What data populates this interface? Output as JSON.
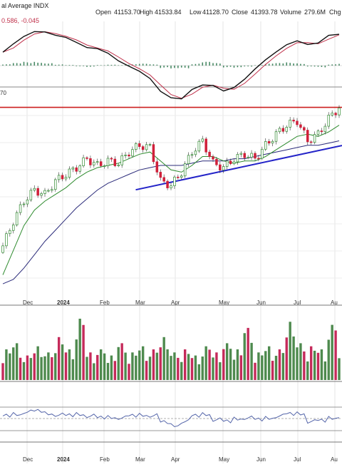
{
  "header": {
    "title": "al Average INDX",
    "open_label": "Open",
    "open": "41153.70",
    "high_label": "High",
    "high": "41533.84",
    "low_label": "Low",
    "low": "41128.70",
    "close_label": "Close",
    "close": "41393.78",
    "volume_label": "Volume",
    "volume": "279.6M",
    "chg_label": "Chg"
  },
  "macd_readout": "0.586, -0.045",
  "resistance_label": "70",
  "colors": {
    "up_candle": "#2f8a2f",
    "down_candle": "#d0203a",
    "sma_fast": "#2e8b2e",
    "sma_slow": "#2b2b7a",
    "resistance": "#cc1f1f",
    "trendline": "#2424c8",
    "macd": "#111111",
    "macd_signal": "#c0304a",
    "macd_hist": "#4a8a66",
    "rsi": "#5566aa",
    "rsi_fill": "#6aa38a",
    "volume_up": "#4e8a4e",
    "volume_down": "#c52a5a"
  },
  "chart_data": {
    "type": "candlestick",
    "x_tick_labels": [
      "Dec",
      "2024",
      "Feb",
      "Mar",
      "Apr",
      "May",
      "Jun",
      "Jul",
      "Au"
    ],
    "series": [
      {
        "name": "Price (weekly close, approx.)",
        "type": "line",
        "values": [
          35200,
          36300,
          37200,
          37700,
          37500,
          38100,
          38400,
          38700,
          39100,
          38800,
          39000,
          38900,
          39400,
          39700,
          39600,
          38100,
          37900,
          38500,
          39400,
          39900,
          38900,
          38700,
          39100,
          39300,
          39100,
          39700,
          40200,
          40600,
          40800,
          39900,
          40200,
          40900,
          41400
        ]
      },
      {
        "name": "Moving average (fast)",
        "type": "line",
        "values": [
          33900,
          35000,
          36100,
          36800,
          37200,
          37500,
          37800,
          38200,
          38500,
          38700,
          38800,
          38900,
          39100,
          39300,
          39400,
          39000,
          38600,
          38500,
          38800,
          39200,
          39200,
          39000,
          38900,
          39000,
          39000,
          39200,
          39500,
          39800,
          40100,
          40200,
          40100,
          40300,
          40600
        ]
      },
      {
        "name": "Moving average (slow)",
        "type": "line",
        "values": [
          33500,
          33700,
          34200,
          34800,
          35400,
          35900,
          36400,
          36900,
          37300,
          37700,
          38000,
          38200,
          38400,
          38600,
          38700,
          38800,
          38800,
          38800,
          38900,
          39000,
          39000,
          39000,
          39100,
          39100,
          39200,
          39300,
          39400,
          39500,
          39600,
          39700,
          39700,
          39800,
          39900
        ]
      }
    ],
    "annotations": {
      "resistance_level": 41400,
      "rising_trendline": [
        {
          "week": 14,
          "value": 37900
        },
        {
          "week": 32,
          "value": 39500
        }
      ]
    },
    "volume": {
      "description": "Weekly volume bars; colors alternate up/down per session.",
      "relative_values": [
        0.5,
        0.6,
        0.4,
        0.55,
        0.45,
        0.7,
        0.5,
        1.0,
        0.45,
        0.5,
        0.4,
        0.6,
        0.45,
        0.55,
        0.5,
        0.7,
        0.45,
        0.5,
        0.4,
        0.55,
        0.45,
        0.6,
        0.5,
        0.85,
        0.45,
        0.55,
        0.5,
        0.95,
        0.6,
        0.55,
        0.5,
        0.9,
        0.45
      ]
    },
    "macd_histogram_relative": [
      0.2,
      0.4,
      0.6,
      0.7,
      0.5,
      0.2,
      0.1,
      -0.1,
      -0.2,
      0.1,
      0.2,
      0.1,
      0.2,
      0.3,
      0.2,
      -0.4,
      -0.6,
      -0.5,
      0.3,
      0.6,
      0.4,
      -0.3,
      -0.4,
      -0.2,
      0.1,
      0.3,
      0.4,
      0.5,
      0.4,
      -0.2,
      -0.3,
      0.2,
      0.3
    ],
    "rsi_relative": [
      0.55,
      0.6,
      0.66,
      0.68,
      0.62,
      0.58,
      0.56,
      0.6,
      0.55,
      0.5,
      0.52,
      0.5,
      0.55,
      0.58,
      0.56,
      0.38,
      0.3,
      0.4,
      0.55,
      0.6,
      0.45,
      0.4,
      0.48,
      0.5,
      0.45,
      0.5,
      0.55,
      0.6,
      0.62,
      0.4,
      0.42,
      0.5,
      0.55
    ],
    "grid": true
  }
}
